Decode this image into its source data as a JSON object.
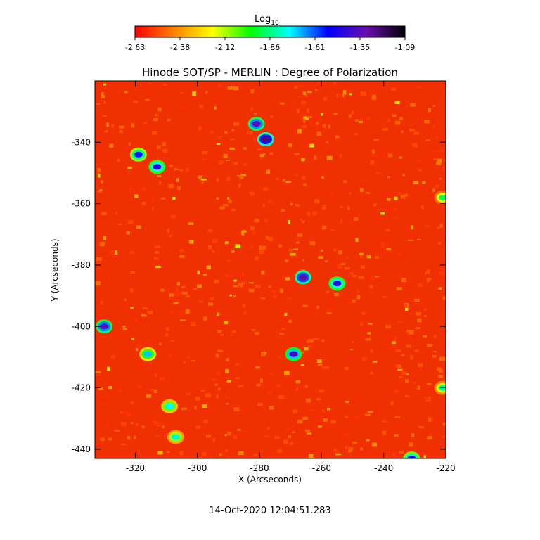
{
  "colorbar": {
    "label_main": "Log",
    "label_sub": "10",
    "ticks": [
      "-2.63",
      "-2.38",
      "-2.12",
      "-1.86",
      "-1.61",
      "-1.35",
      "-1.09"
    ],
    "range": [
      -2.63,
      -1.09
    ],
    "colormap": [
      "#ff0000",
      "#ff8000",
      "#ffff00",
      "#00ff00",
      "#00ffff",
      "#0000ff",
      "#6a0dad",
      "#000000"
    ]
  },
  "chart_data": {
    "type": "heatmap",
    "title": "Hinode SOT/SP - MERLIN : Degree of Polarization",
    "xlabel": "X (Arcseconds)",
    "ylabel": "Y (Arcseconds)",
    "xlim": [
      -333,
      -220
    ],
    "ylim": [
      -443,
      -320
    ],
    "x_ticks": [
      "-320",
      "-300",
      "-280",
      "-260",
      "-240",
      "-220"
    ],
    "y_ticks": [
      "-340",
      "-360",
      "-380",
      "-400",
      "-420",
      "-440"
    ],
    "x_tick_values": [
      -320,
      -300,
      -280,
      -260,
      -240,
      -220
    ],
    "y_tick_values": [
      -340,
      -360,
      -380,
      -400,
      -420,
      -440
    ],
    "value_range_log10": [
      -2.63,
      -1.09
    ],
    "background_level_log10": -2.55,
    "features": [
      {
        "x": -281,
        "y": -334,
        "log10": -1.35
      },
      {
        "x": -278,
        "y": -339,
        "log10": -1.25
      },
      {
        "x": -319,
        "y": -344,
        "log10": -1.55
      },
      {
        "x": -313,
        "y": -348,
        "log10": -1.45
      },
      {
        "x": -266,
        "y": -384,
        "log10": -1.3
      },
      {
        "x": -255,
        "y": -386,
        "log10": -1.45
      },
      {
        "x": -330,
        "y": -400,
        "log10": -1.35
      },
      {
        "x": -269,
        "y": -409,
        "log10": -1.4
      },
      {
        "x": -316,
        "y": -409,
        "log10": -1.7
      },
      {
        "x": -309,
        "y": -426,
        "log10": -1.75
      },
      {
        "x": -307,
        "y": -436,
        "log10": -1.8
      },
      {
        "x": -221,
        "y": -420,
        "log10": -1.85
      },
      {
        "x": -221,
        "y": -358,
        "log10": -1.9
      },
      {
        "x": -231,
        "y": -443,
        "log10": -1.5
      }
    ]
  },
  "timestamp": "14-Oct-2020 12:04:51.283"
}
